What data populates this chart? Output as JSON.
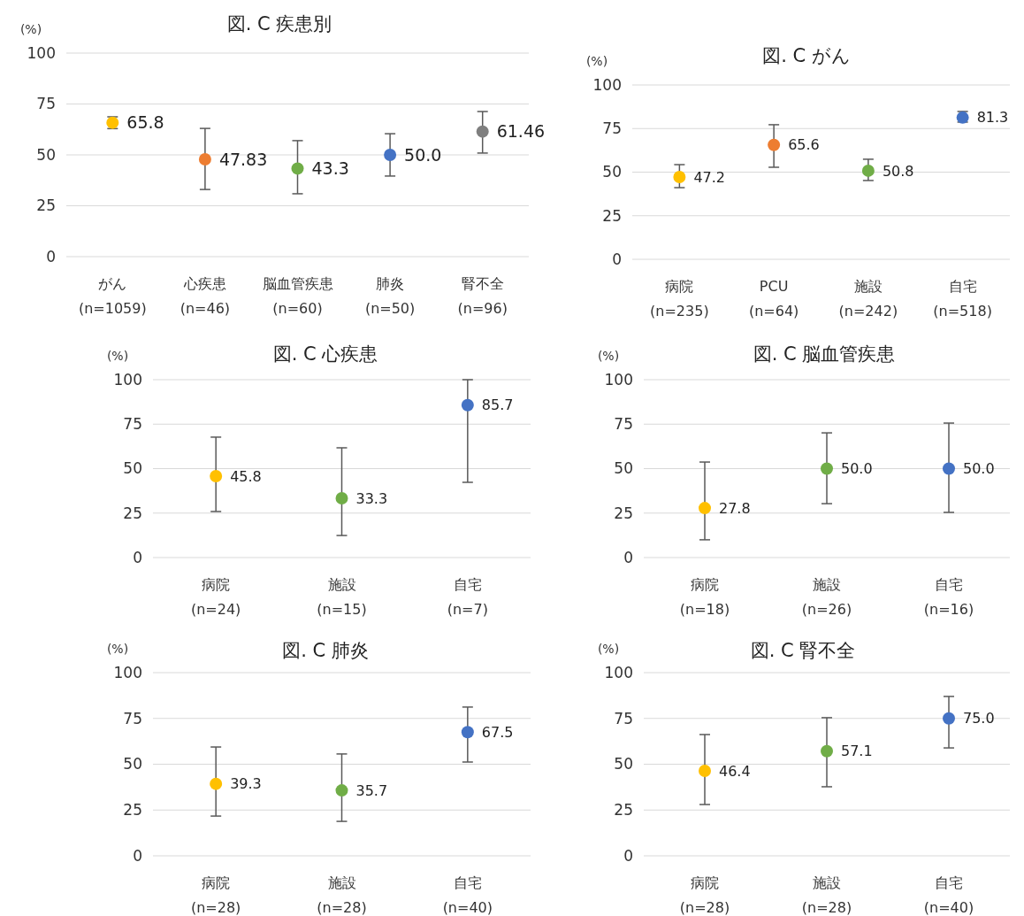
{
  "chart_data": [
    {
      "type": "scatter",
      "title": "図. C 疾患別",
      "ylabel": "(%)",
      "categories": [
        "がん\n(n=1059)",
        "心疾患\n(n=46)",
        "脳血管疾患\n(n=60)",
        "肺炎\n(n=50)",
        "腎不全\n(n=96)"
      ],
      "values": [
        65.8,
        47.83,
        43.3,
        50.0,
        61.46
      ],
      "value_labels": [
        "65.8",
        "47.83",
        "43.3",
        "50.0",
        "61.46"
      ],
      "errors": [
        [
          62.9,
          68.7
        ],
        [
          33.0,
          63.0
        ],
        [
          30.9,
          57.0
        ],
        [
          39.6,
          60.4
        ],
        [
          50.9,
          71.3
        ]
      ],
      "colors": [
        "#ffc000",
        "#ed7d31",
        "#70ad47",
        "#4472c4",
        "#7f7f7f"
      ],
      "ylim": [
        0,
        100
      ],
      "yticks": [
        0,
        25,
        50,
        75,
        100
      ],
      "grid": "y",
      "marker": "circle"
    },
    {
      "type": "scatter",
      "title": "図. C がん",
      "ylabel": "(%)",
      "categories": [
        "病院\n(n=235)",
        "PCU\n(n=64)",
        "施設\n(n=242)",
        "自宅\n(n=518)"
      ],
      "values": [
        47.2,
        65.6,
        50.8,
        81.3
      ],
      "value_labels": [
        "47.2",
        "65.6",
        "50.8",
        "81.3"
      ],
      "errors": [
        [
          41.1,
          54.3
        ],
        [
          52.8,
          77.2
        ],
        [
          45.2,
          57.4
        ],
        [
          78.7,
          84.8
        ]
      ],
      "colors": [
        "#ffc000",
        "#ed7d31",
        "#70ad47",
        "#4472c4"
      ],
      "ylim": [
        0,
        100
      ],
      "yticks": [
        0,
        25,
        50,
        75,
        100
      ],
      "grid": "y",
      "marker": "circle"
    },
    {
      "type": "scatter",
      "title": "図. C 心疾患",
      "ylabel": "(%)",
      "categories": [
        "病院\n(n=24)",
        "施設\n(n=15)",
        "自宅\n(n=7)"
      ],
      "values": [
        45.8,
        33.3,
        85.7
      ],
      "value_labels": [
        "45.8",
        "33.3",
        "85.7"
      ],
      "errors": [
        [
          25.9,
          67.7
        ],
        [
          12.4,
          61.7
        ],
        [
          42.3,
          100
        ]
      ],
      "colors": [
        "#ffc000",
        "#70ad47",
        "#4472c4"
      ],
      "ylim": [
        0,
        100
      ],
      "yticks": [
        0,
        25,
        50,
        75,
        100
      ],
      "grid": "y",
      "marker": "circle"
    },
    {
      "type": "scatter",
      "title": "図. C 脳血管疾患",
      "ylabel": "(%)",
      "categories": [
        "病院\n(n=18)",
        "施設\n(n=26)",
        "自宅\n(n=16)"
      ],
      "values": [
        27.8,
        50.0,
        50.0
      ],
      "value_labels": [
        "27.8",
        "50.0",
        "50.0"
      ],
      "errors": [
        [
          10.0,
          53.7
        ],
        [
          30.3,
          70.1
        ],
        [
          25.4,
          75.6
        ]
      ],
      "colors": [
        "#ffc000",
        "#70ad47",
        "#4472c4"
      ],
      "ylim": [
        0,
        100
      ],
      "yticks": [
        0,
        25,
        50,
        75,
        100
      ],
      "grid": "y",
      "marker": "circle"
    },
    {
      "type": "scatter",
      "title": "図. C 肺炎",
      "ylabel": "(%)",
      "categories": [
        "病院\n(n=28)",
        "施設\n(n=28)",
        "自宅\n(n=40)"
      ],
      "values": [
        39.3,
        35.7,
        67.5
      ],
      "value_labels": [
        "39.3",
        "35.7",
        "67.5"
      ],
      "errors": [
        [
          21.7,
          59.4
        ],
        [
          18.8,
          55.6
        ],
        [
          51.2,
          81.2
        ]
      ],
      "colors": [
        "#ffc000",
        "#70ad47",
        "#4472c4"
      ],
      "ylim": [
        0,
        100
      ],
      "yticks": [
        0,
        25,
        50,
        75,
        100
      ],
      "grid": "y",
      "marker": "circle"
    },
    {
      "type": "scatter",
      "title": "図. C 腎不全",
      "ylabel": "(%)",
      "categories": [
        "病院\n(n=28)",
        "施設\n(n=28)",
        "自宅\n(n=40)"
      ],
      "values": [
        46.4,
        57.1,
        75.0
      ],
      "value_labels": [
        "46.4",
        "57.1",
        "75.0"
      ],
      "errors": [
        [
          28.0,
          66.2
        ],
        [
          37.7,
          75.4
        ],
        [
          58.9,
          87.0
        ]
      ],
      "colors": [
        "#ffc000",
        "#70ad47",
        "#4472c4"
      ],
      "ylim": [
        0,
        100
      ],
      "yticks": [
        0,
        25,
        50,
        75,
        100
      ],
      "grid": "y",
      "marker": "circle"
    }
  ]
}
